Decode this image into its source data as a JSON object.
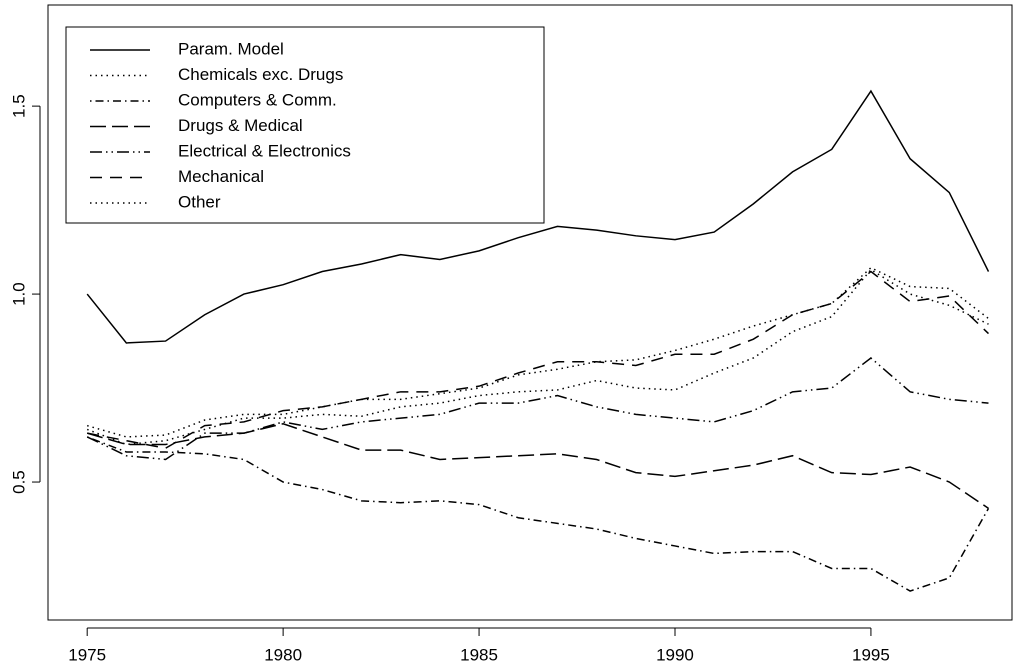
{
  "chart_data": {
    "type": "line",
    "x": [
      1975,
      1976,
      1977,
      1978,
      1979,
      1980,
      1981,
      1982,
      1983,
      1984,
      1985,
      1986,
      1987,
      1988,
      1989,
      1990,
      1991,
      1992,
      1993,
      1994,
      1995,
      1996,
      1997,
      1998
    ],
    "series": [
      {
        "name": "Param. Model",
        "color": "#000000",
        "linetype": "solid",
        "values": [
          1.0,
          0.87,
          0.875,
          0.945,
          1.0,
          1.025,
          1.06,
          1.08,
          1.105,
          1.092,
          1.115,
          1.15,
          1.18,
          1.17,
          1.155,
          1.145,
          1.165,
          1.24,
          1.325,
          1.385,
          1.54,
          1.36,
          1.27,
          1.06
        ]
      },
      {
        "name": "Chemicals exc. Drugs",
        "color": "#000000",
        "linetype": "dotted",
        "values": [
          0.64,
          0.6,
          0.61,
          0.64,
          0.67,
          0.67,
          0.68,
          0.675,
          0.7,
          0.71,
          0.73,
          0.74,
          0.745,
          0.77,
          0.75,
          0.745,
          0.79,
          0.83,
          0.9,
          0.94,
          1.065,
          1.0,
          0.97,
          0.92
        ]
      },
      {
        "name": "Computers & Comm.",
        "color": "#000000",
        "linetype": "dotdash",
        "values": [
          0.62,
          0.58,
          0.58,
          0.575,
          0.56,
          0.5,
          0.48,
          0.45,
          0.445,
          0.45,
          0.44,
          0.405,
          0.39,
          0.375,
          0.35,
          0.33,
          0.31,
          0.315,
          0.315,
          0.27,
          0.27,
          0.21,
          0.245,
          0.43
        ]
      },
      {
        "name": "Drugs & Medical",
        "color": "#000000",
        "linetype": "longdash",
        "values": [
          0.63,
          0.6,
          0.6,
          0.62,
          0.63,
          0.655,
          0.62,
          0.585,
          0.585,
          0.56,
          0.565,
          0.57,
          0.575,
          0.56,
          0.525,
          0.515,
          0.53,
          0.545,
          0.57,
          0.525,
          0.52,
          0.54,
          0.5,
          0.43
        ]
      },
      {
        "name": "Electrical & Electronics",
        "color": "#000000",
        "linetype": "twodash",
        "values": [
          0.62,
          0.57,
          0.56,
          0.63,
          0.63,
          0.66,
          0.64,
          0.66,
          0.67,
          0.68,
          0.71,
          0.71,
          0.73,
          0.7,
          0.68,
          0.67,
          0.66,
          0.69,
          0.74,
          0.75,
          0.83,
          0.74,
          0.72,
          0.71
        ]
      },
      {
        "name": "Mechanical",
        "color": "#000000",
        "linetype": "dashed",
        "values": [
          0.63,
          0.61,
          0.59,
          0.65,
          0.66,
          0.69,
          0.7,
          0.72,
          0.74,
          0.74,
          0.755,
          0.79,
          0.82,
          0.82,
          0.81,
          0.84,
          0.84,
          0.88,
          0.945,
          0.975,
          1.06,
          0.98,
          0.995,
          0.895
        ]
      },
      {
        "name": "Other",
        "color": "#000000",
        "linetype": "dotted",
        "values": [
          0.65,
          0.62,
          0.625,
          0.665,
          0.68,
          0.68,
          0.7,
          0.72,
          0.72,
          0.735,
          0.75,
          0.785,
          0.8,
          0.82,
          0.825,
          0.85,
          0.88,
          0.915,
          0.945,
          0.975,
          1.07,
          1.02,
          1.015,
          0.935
        ]
      }
    ],
    "xlim": [
      1974,
      1998.6
    ],
    "xticks": [
      1975,
      1980,
      1985,
      1990,
      1995
    ],
    "ylim": [
      0.133,
      1.769
    ],
    "yticks": [
      0.5,
      {
        "value": 1,
        "label": "1.0"
      },
      1.5
    ],
    "legend": "topleft"
  }
}
